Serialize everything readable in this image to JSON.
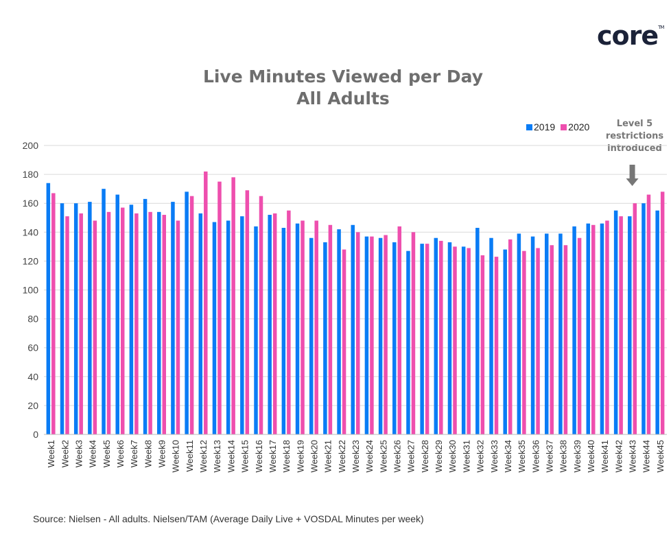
{
  "brand": {
    "logo": "core",
    "tm": "TM"
  },
  "source": "Source: Nielsen - All adults. Nielsen/TAM (Average Daily Live + VOSDAL Minutes per week)",
  "annotation": {
    "text_lines": [
      "Level 5",
      "restrictions",
      "introduced"
    ],
    "week": "Week43"
  },
  "chart_data": {
    "type": "bar",
    "title": "Live Minutes Viewed per Day",
    "subtitle": "All Adults",
    "xlabel": "",
    "ylabel": "",
    "ylim": [
      0,
      200
    ],
    "yticks": [
      0,
      20,
      40,
      60,
      80,
      100,
      120,
      140,
      160,
      180,
      200
    ],
    "grid": true,
    "legend": "top-right",
    "categories": [
      "Week1",
      "Week2",
      "Week3",
      "Week4",
      "Week5",
      "Week6",
      "Week7",
      "Week8",
      "Week9",
      "Week10",
      "Week11",
      "Week12",
      "Week13",
      "Week14",
      "Week15",
      "Week16",
      "Week17",
      "Week18",
      "Week19",
      "Week20",
      "Week21",
      "Week22",
      "Week23",
      "Week24",
      "Week25",
      "Week26",
      "Week27",
      "Week28",
      "Week29",
      "Week30",
      "Week31",
      "Week32",
      "Week33",
      "Week34",
      "Week35",
      "Week36",
      "Week37",
      "Week38",
      "Week39",
      "Week40",
      "Week41",
      "Week42",
      "Week43",
      "Week44",
      "Week45"
    ],
    "series": [
      {
        "name": "2019",
        "color": "#0a7cf5",
        "values": [
          174,
          160,
          160,
          161,
          170,
          166,
          159,
          163,
          154,
          161,
          168,
          153,
          147,
          148,
          151,
          144,
          152,
          143,
          146,
          136,
          133,
          142,
          145,
          137,
          136,
          133,
          127,
          132,
          136,
          133,
          130,
          143,
          136,
          128,
          139,
          137,
          139,
          139,
          144,
          146,
          146,
          155,
          151,
          160,
          155
        ]
      },
      {
        "name": "2020",
        "color": "#ee4fae",
        "values": [
          167,
          151,
          153,
          148,
          154,
          157,
          153,
          154,
          152,
          148,
          165,
          182,
          175,
          178,
          169,
          165,
          153,
          155,
          148,
          148,
          145,
          128,
          140,
          137,
          138,
          144,
          140,
          132,
          134,
          130,
          129,
          124,
          123,
          135,
          127,
          129,
          131,
          131,
          136,
          145,
          148,
          151,
          160,
          166,
          168
        ]
      }
    ]
  }
}
